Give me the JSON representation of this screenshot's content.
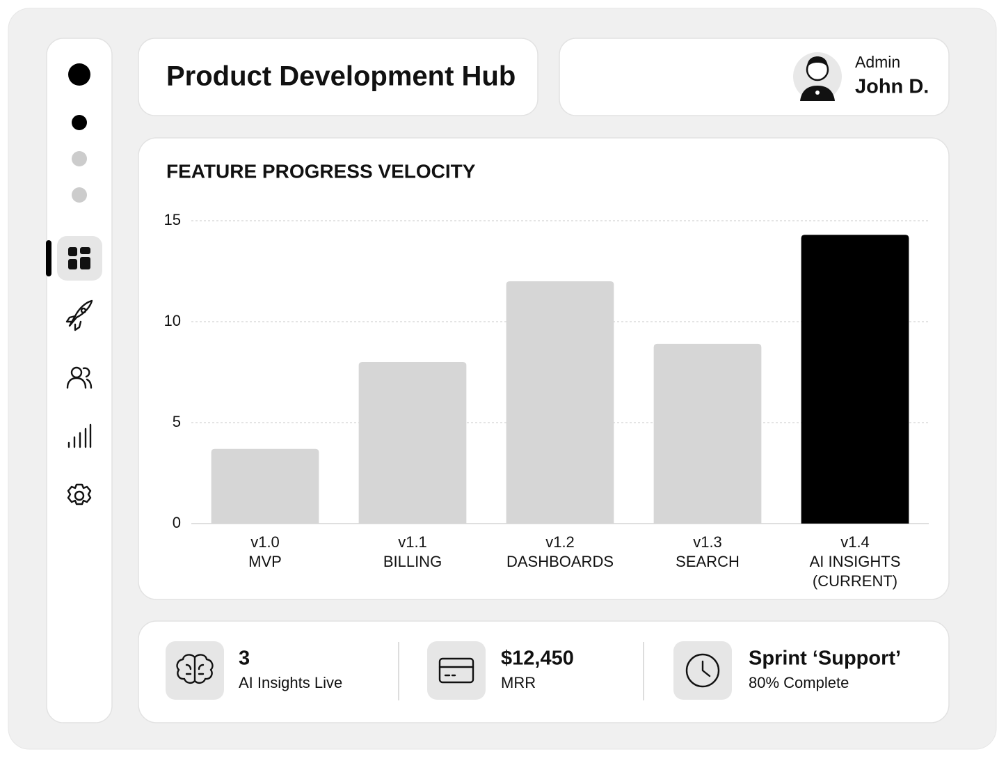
{
  "header": {
    "title": "Product Development Hub"
  },
  "user": {
    "role": "Admin",
    "name": "John D."
  },
  "chart_data": {
    "type": "bar",
    "title": "FEATURE PROGRESS VELOCITY",
    "categories": [
      [
        "v1.0",
        "MVP"
      ],
      [
        "v1.1",
        "BILLING"
      ],
      [
        "v1.2",
        "DASHBOARDS"
      ],
      [
        "v1.3",
        "SEARCH"
      ],
      [
        "v1.4",
        "AI INSIGHTS",
        "(CURRENT)"
      ]
    ],
    "values": [
      3.7,
      8,
      12,
      8.9,
      14.3
    ],
    "colors": [
      "#d6d6d6",
      "#d6d6d6",
      "#d6d6d6",
      "#d6d6d6",
      "#000000"
    ],
    "ylim": [
      0,
      15
    ],
    "yticks": [
      0,
      5,
      10,
      15
    ],
    "grid": true
  },
  "stats": [
    {
      "value": "3",
      "label": "AI Insights Live"
    },
    {
      "value": "$12,450",
      "label": "MRR"
    },
    {
      "value": "Sprint ‘Support’",
      "label": "80% Complete"
    }
  ]
}
